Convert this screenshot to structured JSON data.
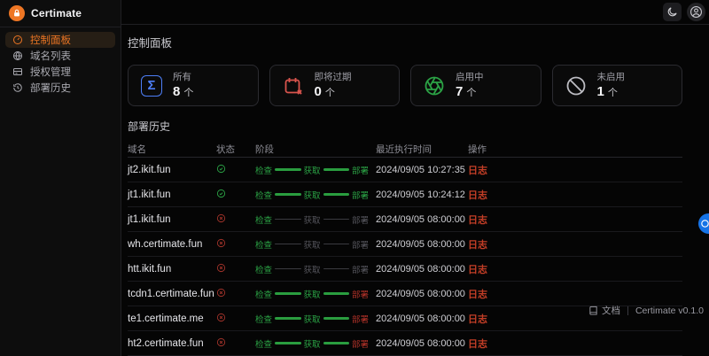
{
  "brand": {
    "name": "Certimate",
    "logo_icon": "lock-icon",
    "accent_color": "#ee7624"
  },
  "topbar": {
    "theme_icon": "moon-icon",
    "account_icon": "user-avatar-icon"
  },
  "sidebar": {
    "items": [
      {
        "label": "控制面板",
        "icon": "gauge-icon",
        "active": true
      },
      {
        "label": "域名列表",
        "icon": "globe-icon",
        "active": false
      },
      {
        "label": "授权管理",
        "icon": "id-card-icon",
        "active": false
      },
      {
        "label": "部署历史",
        "icon": "history-icon",
        "active": false
      }
    ]
  },
  "page": {
    "title": "控制面板"
  },
  "stats": {
    "cards": [
      {
        "label": "所有",
        "value": "8",
        "unit": "个",
        "icon": "sigma-icon",
        "color": "#4d7ef6"
      },
      {
        "label": "即将过期",
        "value": "0",
        "unit": "个",
        "icon": "calendar-x-icon",
        "color": "#d9544d"
      },
      {
        "label": "启用中",
        "value": "7",
        "unit": "个",
        "icon": "aperture-icon",
        "color": "#2ba245"
      },
      {
        "label": "未启用",
        "value": "1",
        "unit": "个",
        "icon": "ban-icon",
        "color": "#bcbcc2"
      }
    ]
  },
  "deploy_history": {
    "title": "部署历史",
    "columns": [
      "域名",
      "状态",
      "阶段",
      "最近执行时间",
      "操作"
    ],
    "stage_labels": [
      "检查",
      "获取",
      "部署"
    ],
    "action_label": "日志",
    "status_colors": {
      "success": "#2ba245",
      "fail": "#a1332a"
    },
    "rows": [
      {
        "domain": "jt2.ikit.fun",
        "status": "success",
        "stage_states": [
          "done",
          "done",
          "done"
        ],
        "time": "2024/09/05 10:27:35"
      },
      {
        "domain": "jt1.ikit.fun",
        "status": "success",
        "stage_states": [
          "done",
          "done",
          "done"
        ],
        "time": "2024/09/05 10:24:12"
      },
      {
        "domain": "jt1.ikit.fun",
        "status": "fail",
        "stage_states": [
          "done",
          "pending",
          "pending"
        ],
        "time": "2024/09/05 08:00:00"
      },
      {
        "domain": "wh.certimate.fun",
        "status": "fail",
        "stage_states": [
          "done",
          "pending",
          "pending"
        ],
        "time": "2024/09/05 08:00:00"
      },
      {
        "domain": "htt.ikit.fun",
        "status": "fail",
        "stage_states": [
          "done",
          "pending",
          "pending"
        ],
        "time": "2024/09/05 08:00:00"
      },
      {
        "domain": "tcdn1.certimate.fun",
        "status": "fail",
        "stage_states": [
          "done",
          "done",
          "failed"
        ],
        "time": "2024/09/05 08:00:00"
      },
      {
        "domain": "te1.certimate.me",
        "status": "fail",
        "stage_states": [
          "done",
          "done",
          "failed"
        ],
        "time": "2024/09/05 08:00:00"
      },
      {
        "domain": "ht2.certimate.fun",
        "status": "fail",
        "stage_states": [
          "done",
          "done",
          "failed"
        ],
        "time": "2024/09/05 08:00:00"
      }
    ]
  },
  "footer": {
    "docs_label": "文档",
    "docs_icon": "book-icon",
    "version": "Certimate v0.1.0"
  },
  "floating": {
    "icon": "widget-icon",
    "color": "#1673e6"
  }
}
